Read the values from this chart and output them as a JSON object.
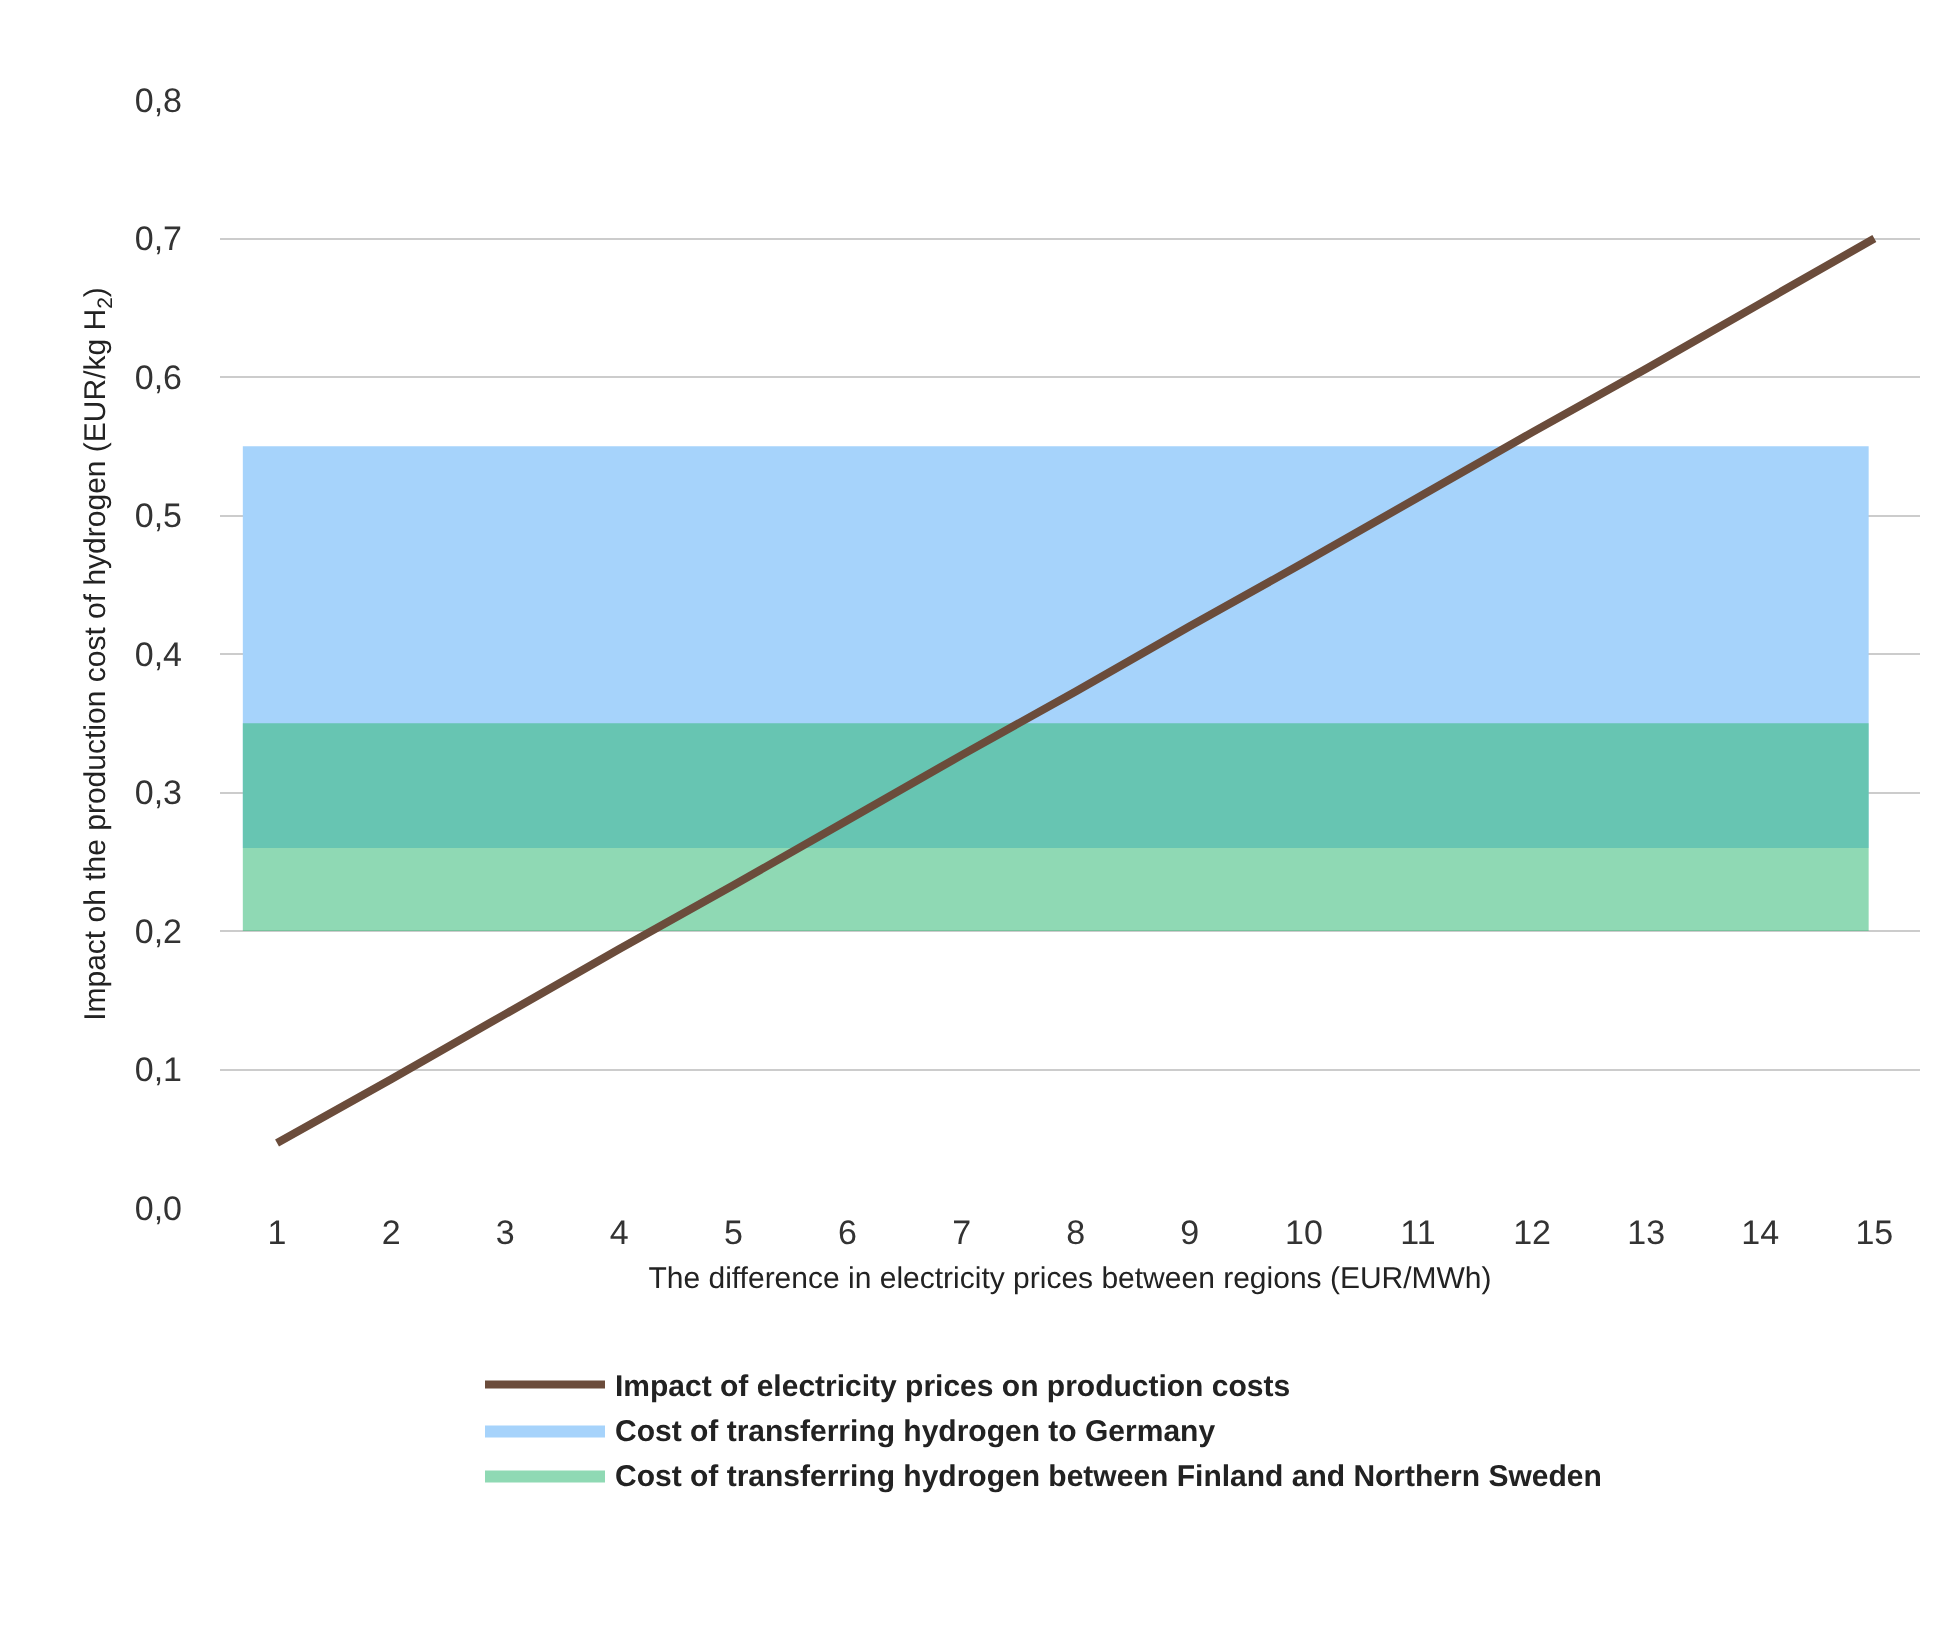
{
  "chart_data": {
    "type": "line",
    "xlabel": "The difference in electricity prices between regions (EUR/MWh)",
    "ylabel": "Impact oh the production cost of hydrogen (EUR/kg H$_{2}$)",
    "x": [
      1,
      2,
      3,
      4,
      5,
      6,
      7,
      8,
      9,
      10,
      11,
      12,
      13,
      14,
      15
    ],
    "series": [
      {
        "name": "Impact of electricity prices on production costs",
        "color": "#6b4c3b",
        "values": [
          0.047,
          0.093,
          0.14,
          0.187,
          0.233,
          0.28,
          0.327,
          0.373,
          0.42,
          0.466,
          0.513,
          0.56,
          0.606,
          0.653,
          0.7
        ]
      }
    ],
    "bands": [
      {
        "axis": "y",
        "from": 0.26,
        "to": 0.55,
        "label": "Cost of transferring hydrogen to Germany",
        "color": "#a6d3fb"
      },
      {
        "axis": "y",
        "from": 0.2,
        "to": 0.35,
        "label": "Cost of transferring hydrogen between Finland and Northern Sweden",
        "color": "#8fd9b4"
      }
    ],
    "xlim": [
      0.5,
      15.4
    ],
    "xticks": [
      1,
      2,
      3,
      4,
      5,
      6,
      7,
      8,
      9,
      10,
      11,
      12,
      13,
      14,
      15
    ],
    "ylim": [
      0,
      0.8
    ],
    "yticks": [
      {
        "value": 0,
        "label": "0,0"
      },
      {
        "value": 0.1,
        "label": "0,1"
      },
      {
        "value": 0.2,
        "label": "0,2"
      },
      {
        "value": 0.3,
        "label": "0,3"
      },
      {
        "value": 0.4,
        "label": "0,4"
      },
      {
        "value": 0.5,
        "label": "0,5"
      },
      {
        "value": 0.6,
        "label": "0,6"
      },
      {
        "value": 0.7,
        "label": "0,7"
      },
      {
        "value": 0.8,
        "label": "0,8"
      }
    ],
    "grid": "y",
    "legend": "bottom",
    "marker": "none",
    "line_style": "solid"
  }
}
